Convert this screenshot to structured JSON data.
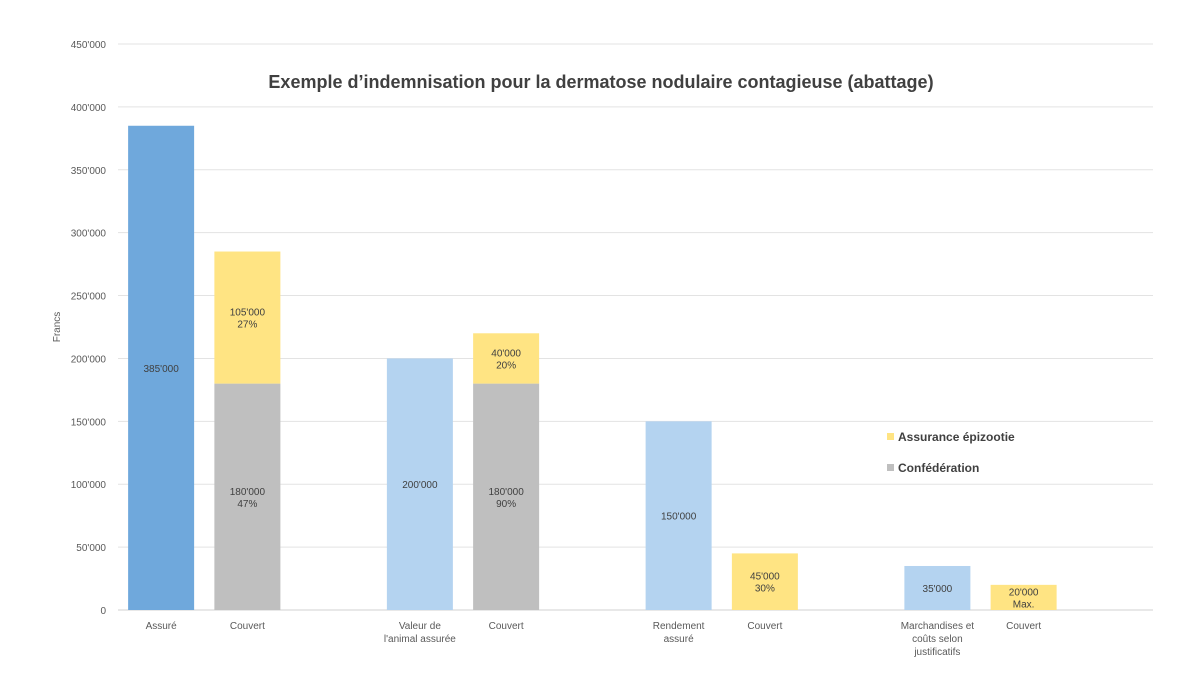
{
  "chart_data": {
    "type": "bar",
    "stacked": true,
    "title": "Exemple d’indemnisation pour la dermatose nodulaire contagieuse (abattage)",
    "xlabel": "",
    "ylabel": "Francs",
    "ylim": [
      0,
      450000
    ],
    "yticks": [
      0,
      50000,
      100000,
      150000,
      200000,
      250000,
      300000,
      350000,
      400000,
      450000
    ],
    "ytick_labels": [
      "0",
      "50'000",
      "100'000",
      "150'000",
      "200'000",
      "250'000",
      "300'000",
      "350'000",
      "400'000",
      "450'000"
    ],
    "grid": true,
    "legend": {
      "placement": "right",
      "entries": [
        {
          "name": "Assurance épizootie",
          "color": "#ffe483"
        },
        {
          "name": "Confédération",
          "color": "#bfbfbf"
        }
      ]
    },
    "colors": {
      "assure_total": "#6fa8dc",
      "assure_part": "#b4d3f0",
      "confederation": "#bfbfbf",
      "assurance_epizootie": "#ffe483"
    },
    "categories": [
      {
        "label": [
          "Assuré"
        ],
        "segments": [
          {
            "value": 385000,
            "color": "#6fa8dc",
            "label": [
              "385'000"
            ]
          }
        ]
      },
      {
        "label": [
          "Couvert"
        ],
        "segments": [
          {
            "series": "Confédération",
            "value": 180000,
            "color": "#bfbfbf",
            "label": [
              "180'000",
              "47%"
            ]
          },
          {
            "series": "Assurance épizootie",
            "value": 105000,
            "color": "#ffe483",
            "label": [
              "105'000",
              "27%"
            ]
          }
        ]
      },
      {
        "label": [],
        "segments": []
      },
      {
        "label": [
          "Valeur de",
          "l'animal assurée"
        ],
        "segments": [
          {
            "value": 200000,
            "color": "#b4d3f0",
            "label": [
              "200'000"
            ]
          }
        ]
      },
      {
        "label": [
          "Couvert"
        ],
        "segments": [
          {
            "series": "Confédération",
            "value": 180000,
            "color": "#bfbfbf",
            "label": [
              "180'000",
              "90%"
            ]
          },
          {
            "series": "Assurance épizootie",
            "value": 40000,
            "color": "#ffe483",
            "label": [
              "40'000",
              "20%"
            ]
          }
        ]
      },
      {
        "label": [],
        "segments": []
      },
      {
        "label": [
          "Rendement",
          "assuré"
        ],
        "segments": [
          {
            "value": 150000,
            "color": "#b4d3f0",
            "label": [
              "150'000"
            ]
          }
        ]
      },
      {
        "label": [
          "Couvert"
        ],
        "segments": [
          {
            "series": "Assurance épizootie",
            "value": 45000,
            "color": "#ffe483",
            "label": [
              "45'000",
              "30%"
            ]
          }
        ]
      },
      {
        "label": [],
        "segments": []
      },
      {
        "label": [
          "Marchandises et",
          "coûts selon",
          "justificatifs"
        ],
        "segments": [
          {
            "value": 35000,
            "color": "#b4d3f0",
            "label": [
              "35'000"
            ]
          }
        ]
      },
      {
        "label": [
          "Couvert"
        ],
        "segments": [
          {
            "series": "Assurance épizootie",
            "value": 20000,
            "color": "#ffe483",
            "label": [
              "20'000",
              "Max."
            ]
          }
        ]
      },
      {
        "label": [],
        "segments": []
      }
    ]
  }
}
